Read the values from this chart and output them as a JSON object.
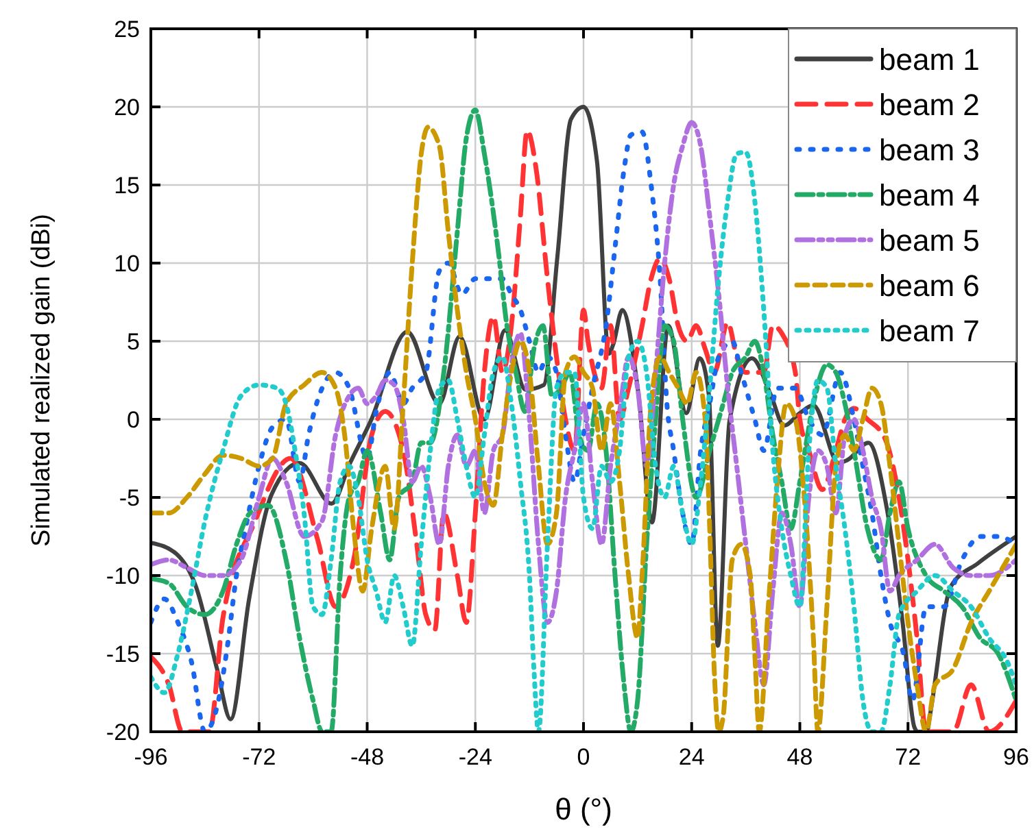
{
  "chart_data": {
    "type": "line",
    "xlabel": "θ (°)",
    "ylabel": "Simulated realized gain (dBi)",
    "xlim": [
      -96,
      96
    ],
    "ylim": [
      -20,
      25
    ],
    "xticks": [
      -96,
      -72,
      -48,
      -24,
      0,
      24,
      48,
      72,
      96
    ],
    "yticks": [
      -20,
      -15,
      -10,
      -5,
      0,
      5,
      10,
      15,
      20,
      25
    ],
    "grid": true,
    "legend": "top right",
    "series": [
      {
        "name": "beam 1",
        "color": "#404040",
        "line_style": "solid",
        "x": [
          -96,
          -90.4,
          -86,
          -81.3,
          -78.3,
          -74.2,
          -69.2,
          -63,
          -55.9,
          -51.8,
          -47.2,
          -39.1,
          -32,
          -27.5,
          -22,
          -17.4,
          -12.9,
          -8.8,
          -5.8,
          -2.8,
          0,
          3,
          5.6,
          6.6,
          8.6,
          12.2,
          15.2,
          18.8,
          22.8,
          25.8,
          27.8,
          29.8,
          32.4,
          37.4,
          41.5,
          44.5,
          48,
          51,
          56.6,
          58.6,
          63.2,
          67.3,
          70.8,
          73.4,
          74.2,
          76.2,
          76.9,
          81.5,
          87.6,
          96
        ],
        "values": [
          -7.9,
          -8.6,
          -10.7,
          -16,
          -19.2,
          -11.5,
          -4.8,
          -2.8,
          -5.4,
          -2.8,
          -0.1,
          5.6,
          1,
          5.3,
          0,
          5.7,
          1.9,
          2.2,
          10.4,
          19.2,
          20,
          16.5,
          4.2,
          4.8,
          7,
          1.6,
          -6.6,
          6,
          0.4,
          3.9,
          1.6,
          -14.5,
          -0.1,
          3.9,
          1.6,
          -0.4,
          0.4,
          0.9,
          -2.8,
          -2.6,
          -1.5,
          -5.7,
          -13,
          -19.7,
          -20,
          -20,
          -18.9,
          -10.7,
          -9.2,
          -7.5
        ]
      },
      {
        "name": "beam 2",
        "color": "#ff3333",
        "line_style": "dashed",
        "x": [
          -96,
          -92,
          -89,
          -83,
          -80,
          -73,
          -65,
          -59,
          -55,
          -51,
          -47,
          -44,
          -40,
          -37,
          -35,
          -33,
          -31,
          -28,
          -26,
          -24,
          -22,
          -20,
          -18,
          -16,
          -14,
          -12.5,
          -10.5,
          -8,
          -6,
          -4,
          -2,
          0,
          1,
          4,
          6,
          8,
          10,
          13,
          15,
          17,
          19,
          21,
          23,
          25,
          27,
          29,
          32,
          34,
          36,
          40,
          42,
          44,
          47,
          48,
          50,
          53,
          56,
          58,
          60,
          63,
          67,
          70,
          72,
          74,
          76,
          82,
          86,
          90,
          96
        ],
        "values": [
          -15.2,
          -17,
          -20,
          -20,
          -12.7,
          -6.6,
          -2.5,
          -7.7,
          -12,
          -9,
          -1,
          0.5,
          -2,
          -8,
          -12.5,
          -13.5,
          -6,
          -10,
          -13,
          -6,
          3,
          6.6,
          3,
          6,
          13,
          18.5,
          16,
          9,
          4,
          0,
          -2,
          7,
          5,
          2,
          6,
          0,
          2,
          6,
          9,
          10.3,
          9,
          6,
          5,
          6,
          4.5,
          3,
          6.2,
          4,
          3,
          3,
          6,
          5.5,
          3,
          0,
          -2,
          -4.5,
          -2,
          0,
          0.7,
          0,
          -1.3,
          -5,
          -9,
          -14,
          -20,
          -20,
          -17,
          -20,
          -18
        ]
      },
      {
        "name": "beam 3",
        "color": "#1a66ee",
        "line_style": "dotted",
        "x": [
          -96,
          -93,
          -90,
          -87,
          -84,
          -81,
          -79,
          -77,
          -75,
          -72,
          -69,
          -66,
          -63,
          -61,
          -58,
          -55,
          -52,
          -48,
          -46,
          -43,
          -40,
          -38,
          -35,
          -32,
          -30,
          -27,
          -24,
          -21,
          -18,
          -16,
          -14,
          -12,
          -10,
          -8,
          -6,
          -4,
          -2,
          0,
          2,
          5,
          7,
          9,
          10.5,
          13,
          15,
          17,
          18.5,
          20,
          22,
          24,
          26,
          28,
          30,
          33,
          35,
          38,
          40,
          43,
          47,
          50,
          53,
          57,
          60,
          62,
          64,
          66,
          68,
          71,
          73,
          76,
          80,
          84,
          88,
          92,
          96
        ],
        "values": [
          -13,
          -11.5,
          -13,
          -15.5,
          -20,
          -18,
          -14.5,
          -10,
          -7,
          -3,
          -0.5,
          0,
          -4,
          -1,
          2,
          3,
          2,
          -2.5,
          0.5,
          3,
          1,
          2,
          3,
          9.5,
          10,
          8,
          9,
          9,
          9,
          8,
          7,
          5,
          3,
          4,
          3,
          -1,
          -4,
          -1,
          2,
          6,
          11,
          16,
          18.2,
          18.4,
          15,
          9,
          1,
          -2,
          -6,
          -8,
          -2,
          1,
          4,
          5,
          3,
          0,
          -2,
          2,
          2,
          0,
          -1,
          3,
          0,
          -3,
          -6,
          -10,
          -13,
          -15,
          -18,
          -12,
          -12,
          -9,
          -7.5,
          -7.5,
          -8
        ]
      },
      {
        "name": "beam 4",
        "color": "#22aa66",
        "line_style": "dashed",
        "x": [
          -96,
          -92,
          -88,
          -84,
          -80,
          -77,
          -74,
          -70,
          -66,
          -63,
          -60,
          -58,
          -56,
          -54,
          -52,
          -50,
          -48,
          -45,
          -43,
          -41,
          -38,
          -36,
          -34,
          -31,
          -28,
          -26,
          -24,
          -22,
          -19,
          -17,
          -15,
          -13,
          -11,
          -9,
          -7,
          -5,
          -3,
          -1,
          1,
          3,
          5,
          7,
          9,
          10.5,
          12,
          14,
          16,
          18,
          20,
          22,
          25,
          28,
          31,
          33,
          36,
          38,
          40,
          42,
          44,
          46,
          48,
          51,
          54,
          56,
          58,
          60,
          63,
          66,
          68,
          70,
          72,
          76,
          80,
          84,
          88,
          92,
          96
        ],
        "values": [
          -10.2,
          -10.5,
          -12,
          -12.5,
          -11,
          -8,
          -6,
          -5.5,
          -9,
          -14,
          -18,
          -20,
          -20,
          -10,
          -5,
          -4,
          -2,
          -6,
          -9,
          -5,
          -4,
          -1.5,
          -1.5,
          3,
          12,
          18,
          19.8,
          17,
          11,
          6,
          3,
          0.5,
          4.5,
          6,
          1.5,
          2,
          3,
          -1,
          -2,
          1,
          -2,
          -10,
          -17,
          -20,
          -18,
          -8,
          0,
          6,
          5,
          0,
          -5,
          -2,
          1,
          3,
          4,
          5,
          3,
          -1,
          -4,
          -7,
          -4,
          1,
          3.5,
          3,
          1,
          -2,
          -7,
          -9,
          -6,
          -4,
          -7,
          -10,
          -11,
          -12,
          -14,
          -15,
          -18
        ]
      },
      {
        "name": "beam 5",
        "color": "#b070e0",
        "line_style": "dashed",
        "x": [
          -96,
          -92,
          -88,
          -84,
          -80,
          -76,
          -72,
          -69,
          -66,
          -62,
          -58,
          -55,
          -52,
          -50,
          -48,
          -46,
          -44,
          -42,
          -40,
          -38,
          -36,
          -34,
          -32,
          -30,
          -28,
          -26,
          -24,
          -22,
          -20,
          -18,
          -16,
          -14,
          -12,
          -10,
          -8,
          -6,
          -4,
          -2,
          0,
          2,
          4,
          6,
          8,
          10,
          12,
          14,
          16,
          18,
          20,
          22,
          24,
          26,
          28,
          30,
          32,
          34,
          36,
          38,
          40,
          42,
          44,
          46,
          48,
          50,
          52,
          54,
          56,
          58,
          60,
          62,
          64,
          66,
          68,
          70,
          74,
          78,
          82,
          86,
          90,
          96
        ],
        "values": [
          -9.3,
          -9,
          -9.5,
          -10,
          -10,
          -9,
          -5,
          -2.5,
          -4,
          -7.5,
          -6.5,
          -1,
          1.5,
          2,
          1,
          1.5,
          2.5,
          2.2,
          0,
          -4,
          -3,
          -5,
          -8,
          -3,
          -1,
          -3,
          -2,
          -6,
          -2,
          -1,
          3.5,
          5.5,
          0,
          -8,
          -13,
          -11,
          -5,
          -2,
          1,
          -4,
          -8,
          -3,
          0.5,
          4,
          2,
          -3,
          3,
          10,
          15,
          17.5,
          19,
          17.5,
          13,
          8,
          2,
          -3,
          -8,
          -13,
          -17,
          -11,
          -6,
          -8,
          -12,
          -5,
          -2,
          -3,
          -6,
          -1,
          0,
          -2,
          -5,
          -7,
          -11,
          -10,
          -9,
          -8,
          -9.5,
          -10,
          -10,
          -9
        ]
      },
      {
        "name": "beam 6",
        "color": "#cc9900",
        "line_style": "dashed",
        "x": [
          -96,
          -92,
          -88,
          -84,
          -80,
          -76,
          -72,
          -69,
          -66,
          -62,
          -58,
          -55,
          -53,
          -51,
          -49,
          -47,
          -44,
          -42,
          -40,
          -38,
          -36,
          -34.5,
          -32,
          -30,
          -28,
          -26,
          -24,
          -22,
          -20,
          -18,
          -16,
          -14,
          -12,
          -10,
          -8,
          -6,
          -4,
          -2,
          0,
          2,
          4,
          6,
          8,
          10,
          12,
          13,
          15,
          17,
          19,
          21,
          23,
          25,
          27,
          28,
          29,
          30,
          31,
          33,
          35,
          37,
          38,
          39,
          41,
          43,
          45,
          47,
          49,
          50,
          51,
          52,
          54,
          56,
          58,
          60,
          62,
          64,
          66,
          68,
          70,
          72,
          74,
          76,
          78,
          82,
          86,
          90,
          94,
          96
        ],
        "values": [
          -6,
          -6,
          -5,
          -3.5,
          -2.3,
          -2.5,
          -3,
          -2.5,
          1,
          2.2,
          3,
          2,
          -1,
          -7,
          -11,
          -7,
          -3,
          -7,
          1,
          10,
          17,
          18.7,
          17.5,
          12,
          7,
          3,
          0,
          -4,
          -5.5,
          -1,
          3,
          5,
          3,
          -3,
          -8,
          -6,
          3,
          4,
          3,
          2,
          -2,
          1,
          -4,
          -10,
          -14,
          -10,
          1,
          4,
          3,
          2,
          1,
          3,
          0,
          -7,
          -16,
          -20,
          -19,
          -9,
          -8,
          -10,
          -15,
          -20,
          -12,
          -4,
          1,
          0,
          -5,
          -9,
          -14,
          -20,
          -12,
          -3,
          -1,
          -2,
          0,
          2,
          1,
          -3,
          -8,
          -13,
          -17,
          -20,
          -17,
          -16,
          -13,
          -11,
          -9,
          -8
        ]
      },
      {
        "name": "beam 7",
        "color": "#22cccc",
        "line_style": "dotted",
        "x": [
          -96,
          -93,
          -90,
          -87,
          -84,
          -80,
          -76,
          -72,
          -68,
          -66,
          -64,
          -62,
          -60,
          -58,
          -56,
          -54,
          -52,
          -50,
          -48,
          -46,
          -44,
          -42,
          -40,
          -38,
          -36,
          -34,
          -32,
          -30,
          -28,
          -26,
          -24,
          -22,
          -20,
          -18,
          -16,
          -14,
          -12,
          -11,
          -10,
          -8,
          -6,
          -4,
          -2,
          0,
          2,
          4,
          6,
          8,
          10,
          12,
          14,
          16,
          18,
          20,
          22,
          24,
          26,
          28,
          30,
          32,
          34,
          36,
          38,
          40,
          42,
          44,
          46,
          48,
          50,
          52,
          54,
          56,
          58,
          60,
          62,
          64,
          66,
          68,
          70,
          74,
          78,
          82,
          86,
          90,
          94,
          96
        ],
        "values": [
          -16.5,
          -17.5,
          -15,
          -11,
          -6.5,
          -2,
          1.5,
          2.2,
          2,
          1,
          -2,
          -6,
          -12,
          -12.5,
          -9,
          -4,
          -3,
          -5,
          -9,
          -11,
          -13,
          -10,
          -12,
          -14.5,
          -8,
          -2,
          2,
          2.5,
          0,
          -3,
          -5,
          -1,
          3,
          4,
          1,
          -4,
          -10,
          -16,
          -20,
          -8,
          2,
          3,
          3,
          -5,
          -7,
          -3,
          -4,
          -2,
          4,
          5,
          3,
          -3,
          -5,
          -3,
          -6,
          -8,
          -4,
          2,
          9,
          14,
          17,
          17.1,
          14,
          7,
          -2,
          -7,
          -10,
          -12,
          -2,
          2.5,
          2,
          -3,
          -7,
          -12,
          -18,
          -20,
          -20,
          -17,
          -12.5,
          -11,
          -10,
          -11,
          -12,
          -14,
          -15.5,
          -17
        ]
      }
    ]
  }
}
